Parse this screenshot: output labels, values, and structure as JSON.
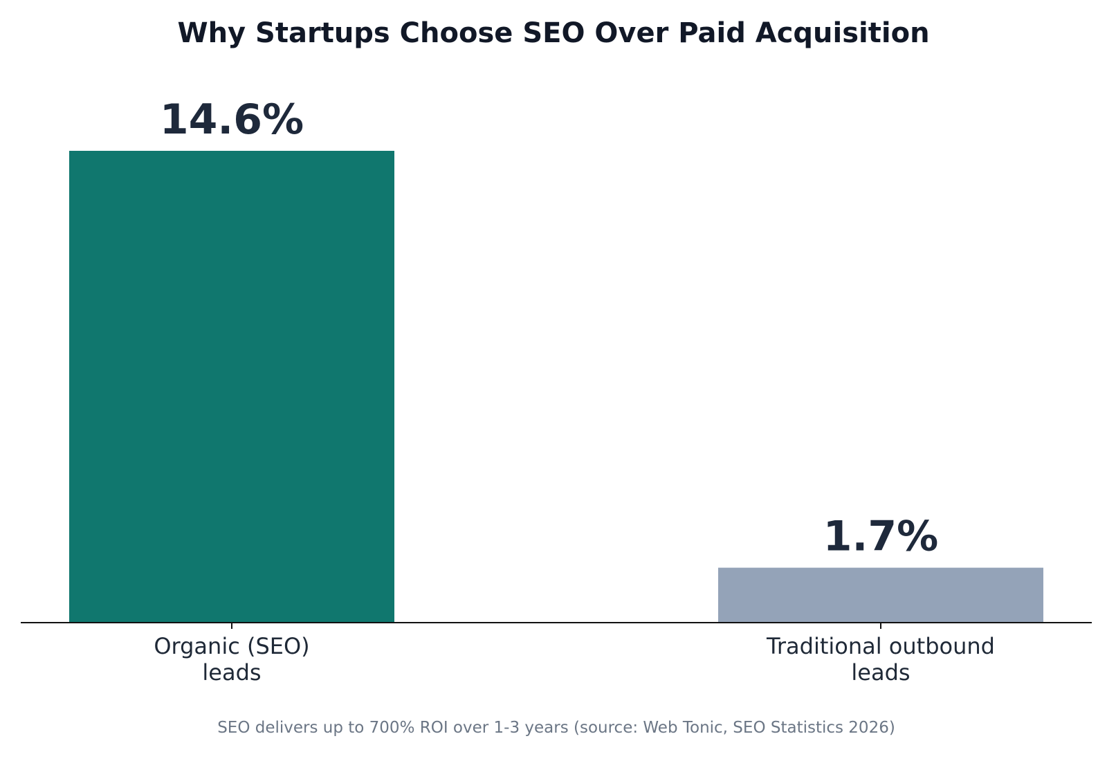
{
  "chart_data": {
    "type": "bar",
    "title": "Why Startups Choose SEO Over Paid Acquisition",
    "categories": [
      [
        "Organic (SEO)",
        "leads"
      ],
      [
        "Traditional outbound",
        "leads"
      ]
    ],
    "values": [
      14.6,
      1.7
    ],
    "value_labels": [
      "14.6%",
      "1.7%"
    ],
    "unit": "%",
    "ylim": [
      0,
      15.5
    ],
    "grid": false,
    "legend": "none",
    "xlabel": "",
    "ylabel": "",
    "caption": "SEO delivers up to 700% ROI over 1-3 years (source: Web Tonic, SEO Statistics 2026)"
  },
  "colors": {
    "bars": [
      "#10776e",
      "#94a3b8"
    ],
    "title": "#111827",
    "value_label": "#1e293b",
    "tick_label": "#1f2937",
    "axis": "#111111",
    "caption": "#6b7685"
  }
}
